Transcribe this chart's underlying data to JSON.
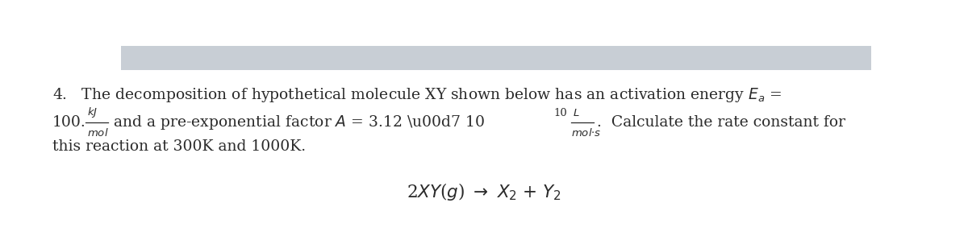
{
  "background_top": "#c8ced5",
  "background_main": "#ffffff",
  "text_color": "#2b2b2b",
  "font_size_main": 13.5,
  "font_size_small": 9.5,
  "font_size_eq": 15.5
}
